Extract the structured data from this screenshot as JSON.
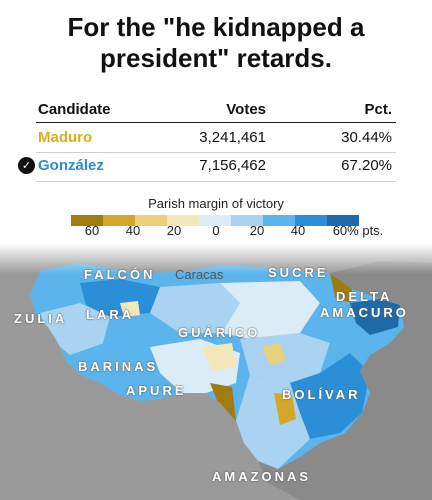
{
  "title": {
    "line1": "For the \"he kidnapped a",
    "line2": "president\" retards."
  },
  "results_table": {
    "headers": [
      "Candidate",
      "Votes",
      "Pct."
    ],
    "rows": [
      {
        "candidate": "Maduro",
        "votes": "3,241,461",
        "pct": "30.44%",
        "winner": false,
        "color": "#e0ad17"
      },
      {
        "candidate": "González",
        "votes": "7,156,462",
        "pct": "67.20%",
        "winner": true,
        "color": "#2a8fd6"
      }
    ],
    "winner_icon": "check-circle-icon"
  },
  "legend": {
    "title": "Parish margin of victory",
    "ticks": [
      "60",
      "40",
      "20",
      "0",
      "20",
      "40",
      "60% pts."
    ],
    "colors": [
      "#a07c10",
      "#d4a72a",
      "#ead07a",
      "#f3e6b8",
      "#dcecf6",
      "#a9d3f0",
      "#5bb5ec",
      "#2a8fd6",
      "#1f6aa8"
    ]
  },
  "map": {
    "region_labels": [
      "FALCÓN",
      "Caracas",
      "SUCRE",
      "DELTA",
      "AMACURO",
      "ZULIA",
      "LARA",
      "GUÁRICO",
      "BARINAS",
      "APURE",
      "BOLÍVAR",
      "AMAZONAS"
    ],
    "land_color": "#9a9a9a",
    "background_color": "#ffffff"
  }
}
